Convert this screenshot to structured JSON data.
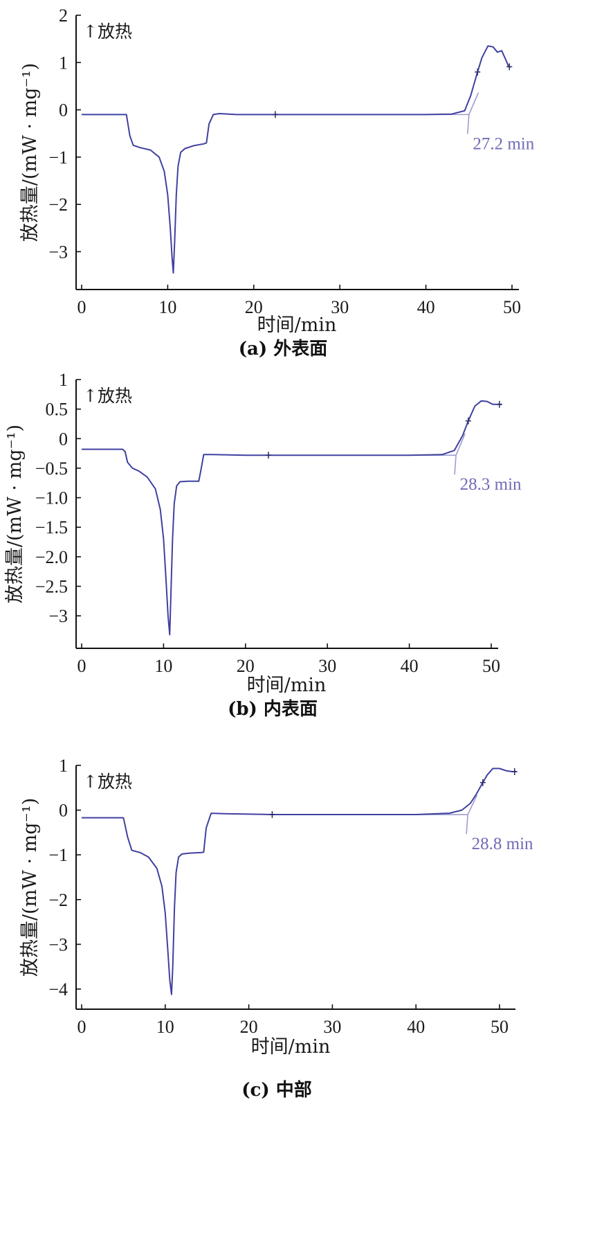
{
  "chart_data": [
    {
      "type": "line",
      "panel": "a",
      "caption": "(a) 外表面",
      "xlabel": "时间/min",
      "ylabel": "放热量/(mW · mg⁻¹)",
      "exo_label": "↑放热",
      "xlim": [
        0,
        50
      ],
      "ylim": [
        -3.8,
        2
      ],
      "xticks": [
        0,
        10,
        20,
        30,
        40,
        50
      ],
      "yticks": [
        2,
        1,
        0,
        -1,
        -2,
        -3
      ],
      "ytick_labels": [
        "2",
        "1",
        "0",
        "−1",
        "−2",
        "−3"
      ],
      "annotation": {
        "text": "27.2 min",
        "x": 45.0,
        "y": -0.1
      },
      "series": [
        {
          "x": [
            0,
            5.2,
            5.6,
            6.0,
            6.8,
            8.0,
            9.0,
            9.6,
            10.0,
            10.3,
            10.5,
            10.65,
            10.8,
            11.0,
            11.2,
            11.5,
            12.0,
            13.0,
            14.2,
            14.5,
            14.8,
            15.3,
            16,
            18,
            22.5,
            30,
            40,
            43,
            44.5,
            45.2,
            46.0,
            46.5,
            47.2,
            47.8,
            48.3,
            48.8,
            49.3,
            49.6,
            49.8
          ],
          "y": [
            -0.1,
            -0.1,
            -0.55,
            -0.75,
            -0.8,
            -0.85,
            -1.0,
            -1.3,
            -1.8,
            -2.5,
            -3.1,
            -3.45,
            -2.8,
            -1.8,
            -1.2,
            -0.9,
            -0.82,
            -0.76,
            -0.72,
            -0.7,
            -0.3,
            -0.1,
            -0.08,
            -0.1,
            -0.1,
            -0.1,
            -0.1,
            -0.09,
            -0.02,
            0.3,
            0.8,
            1.1,
            1.35,
            1.33,
            1.22,
            1.25,
            1.05,
            0.92,
            0.9
          ]
        }
      ],
      "markers_x": [
        22.5,
        46.0,
        49.7
      ]
    },
    {
      "type": "line",
      "panel": "b",
      "caption": "(b) 内表面",
      "xlabel": "时间/min",
      "ylabel": "放热量/(mW · mg⁻¹)",
      "exo_label": "↑放热",
      "xlim": [
        0,
        50
      ],
      "ylim": [
        -3.55,
        1
      ],
      "xticks": [
        0,
        10,
        20,
        30,
        40,
        50
      ],
      "yticks": [
        1,
        0.5,
        0,
        -0.5,
        -1.0,
        -1.5,
        -2.0,
        -2.5,
        -3
      ],
      "ytick_labels": [
        "1",
        "0.5",
        "0",
        "−0.5",
        "−1.0",
        "−1.5",
        "−2.0",
        "−2.5",
        "−3"
      ],
      "annotation": {
        "text": "28.3 min",
        "x": 45.7,
        "y": -0.28
      },
      "series": [
        {
          "x": [
            0,
            5.0,
            5.3,
            5.6,
            6.2,
            7.0,
            8.0,
            9.0,
            9.6,
            10.0,
            10.3,
            10.55,
            10.75,
            10.9,
            11.1,
            11.3,
            11.6,
            12.0,
            13.0,
            14.3,
            14.6,
            14.9,
            16,
            20,
            22.8,
            30,
            40,
            44,
            45.5,
            46.5,
            47.2,
            48.0,
            48.8,
            49.5,
            50.2,
            51.0,
            51.3
          ],
          "y": [
            -0.18,
            -0.18,
            -0.22,
            -0.4,
            -0.5,
            -0.55,
            -0.65,
            -0.85,
            -1.2,
            -1.7,
            -2.4,
            -3.0,
            -3.32,
            -2.6,
            -1.7,
            -1.1,
            -0.8,
            -0.73,
            -0.72,
            -0.72,
            -0.5,
            -0.27,
            -0.27,
            -0.28,
            -0.28,
            -0.28,
            -0.28,
            -0.27,
            -0.2,
            0.05,
            0.3,
            0.55,
            0.64,
            0.63,
            0.58,
            0.58,
            0.58
          ]
        }
      ],
      "markers_x": [
        22.8,
        47.2,
        51.0
      ]
    },
    {
      "type": "line",
      "panel": "c",
      "caption": "(c) 中部",
      "xlabel": "时间/min",
      "ylabel": "放热量/(mW · mg⁻¹)",
      "exo_label": "↑放热",
      "xlim": [
        0,
        50
      ],
      "ylim": [
        -4.45,
        1
      ],
      "xticks": [
        0,
        10,
        20,
        30,
        40,
        50
      ],
      "yticks": [
        1,
        0,
        -1,
        -2,
        -3,
        -4
      ],
      "ytick_labels": [
        "1",
        "0",
        "−1",
        "−2",
        "−3",
        "−4"
      ],
      "annotation": {
        "text": "28.8 min",
        "x": 46.2,
        "y": -0.1
      },
      "series": [
        {
          "x": [
            0,
            5.0,
            5.5,
            6.0,
            7.0,
            8.0,
            9.0,
            9.6,
            10.0,
            10.3,
            10.55,
            10.75,
            10.9,
            11.1,
            11.3,
            11.6,
            12.0,
            13.0,
            14.3,
            14.6,
            14.9,
            15.5,
            17,
            22.8,
            30,
            40,
            44,
            45.5,
            46.5,
            47.2,
            47.8,
            48.5,
            49.2,
            50.0,
            50.8,
            51.5,
            52.0
          ],
          "y": [
            -0.17,
            -0.17,
            -0.6,
            -0.9,
            -0.95,
            -1.05,
            -1.3,
            -1.7,
            -2.3,
            -3.1,
            -3.8,
            -4.12,
            -3.5,
            -2.2,
            -1.4,
            -1.05,
            -0.98,
            -0.96,
            -0.95,
            -0.94,
            -0.4,
            -0.07,
            -0.08,
            -0.1,
            -0.1,
            -0.1,
            -0.07,
            0.0,
            0.15,
            0.35,
            0.55,
            0.78,
            0.93,
            0.93,
            0.88,
            0.86,
            0.86
          ]
        }
      ],
      "markers_x": [
        22.8,
        48.0,
        51.8
      ]
    }
  ],
  "colors": {
    "curve": "#3f40a0",
    "baseline": "#9c9ccf",
    "annotation": "#6f6bb6",
    "axis": "#111111"
  }
}
